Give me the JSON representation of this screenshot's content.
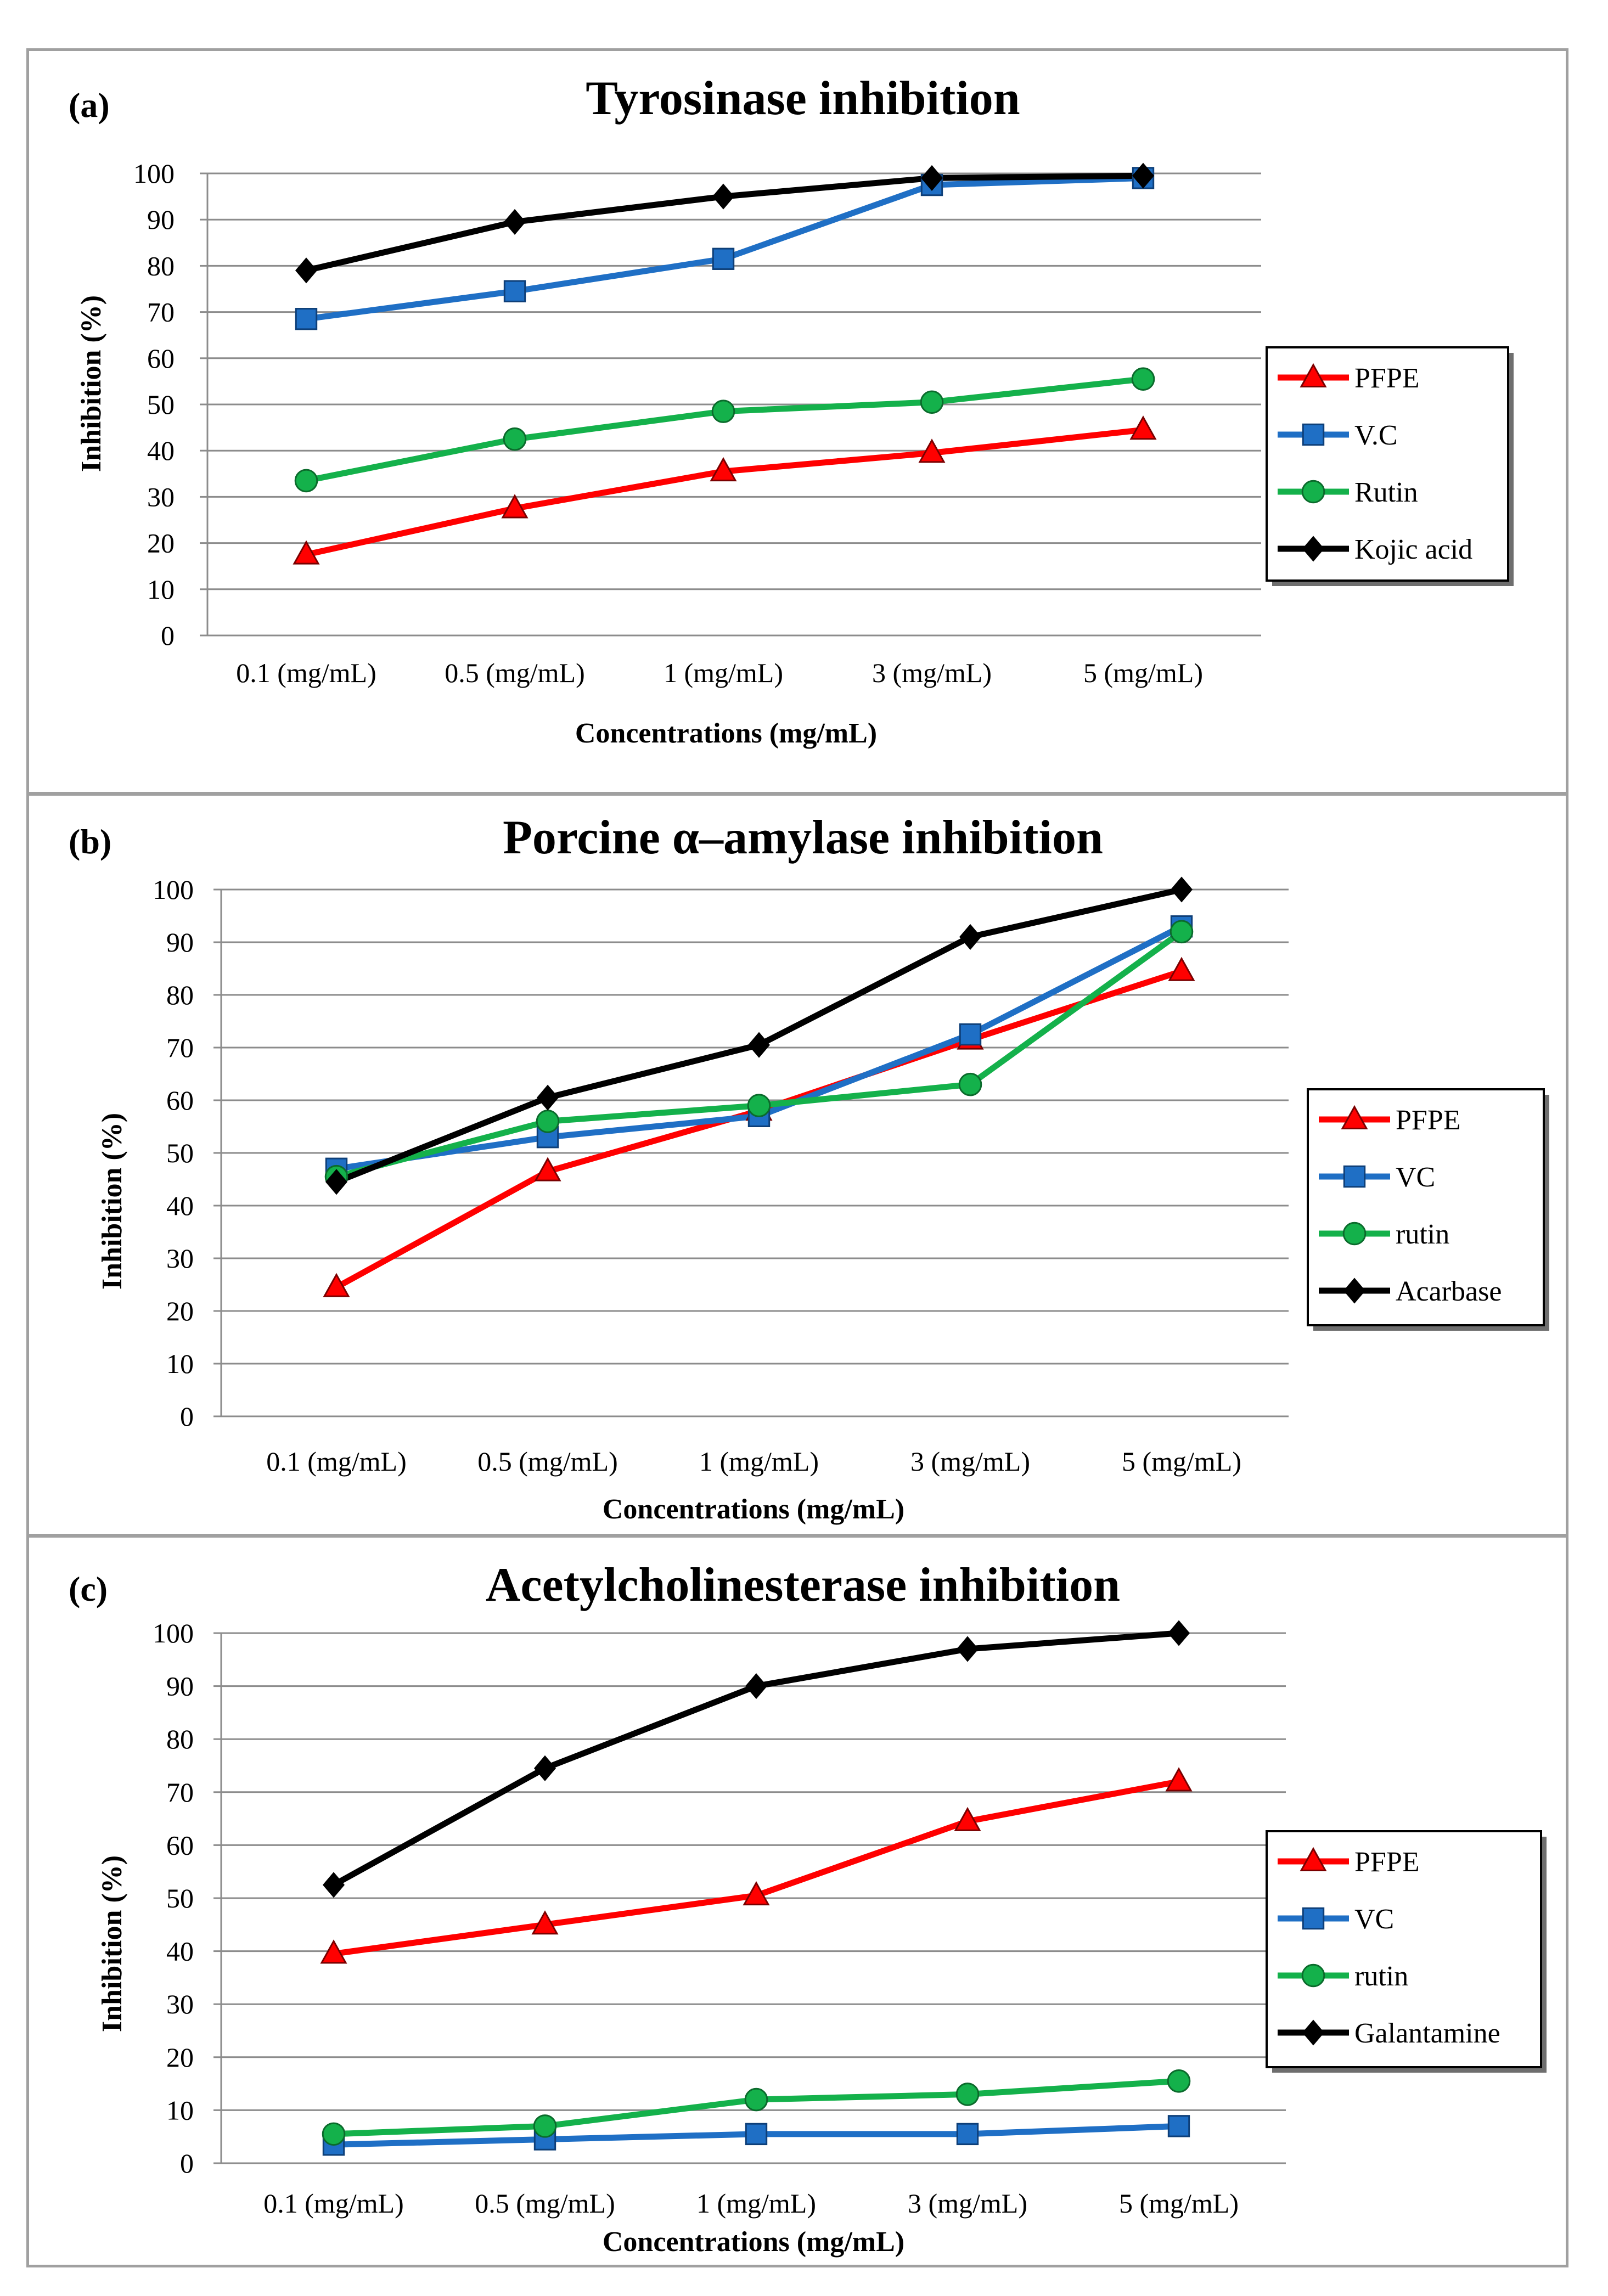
{
  "chart_data": [
    {
      "type": "line",
      "panel_label": "(a)",
      "title": "Tyrosinase inhibition",
      "xlabel": "Concentrations (mg/mL)",
      "ylabel": "Inhibition (%)",
      "categories": [
        "0.1 (mg/mL)",
        "0.5 (mg/mL)",
        "1 (mg/mL)",
        "3 (mg/mL)",
        "5 (mg/mL)"
      ],
      "ylim": [
        0,
        100
      ],
      "yticks": [
        0,
        10,
        20,
        30,
        40,
        50,
        60,
        70,
        80,
        90,
        100
      ],
      "grid": true,
      "legend_position": "right",
      "series": [
        {
          "name": "PFPE",
          "color": "#ff0000",
          "marker": "triangle",
          "values": [
            17.5,
            27.5,
            35.5,
            39.5,
            44.5
          ]
        },
        {
          "name": "V.C",
          "color": "#1f6fc5",
          "marker": "square",
          "values": [
            68.5,
            74.5,
            81.5,
            97.5,
            99.0
          ]
        },
        {
          "name": "Rutin",
          "color": "#14b14b",
          "marker": "circle",
          "values": [
            33.5,
            42.5,
            48.5,
            50.5,
            55.5
          ]
        },
        {
          "name": "Kojic acid",
          "color": "#000000",
          "marker": "diamond",
          "values": [
            79.0,
            89.5,
            95.0,
            99.0,
            99.5
          ]
        }
      ]
    },
    {
      "type": "line",
      "panel_label": "(b)",
      "title": "Porcine α–amylase inhibition",
      "xlabel": "Concentrations (mg/mL)",
      "ylabel": "Inhibition (%)",
      "categories": [
        "0.1 (mg/mL)",
        "0.5 (mg/mL)",
        "1 (mg/mL)",
        "3 (mg/mL)",
        "5 (mg/mL)"
      ],
      "ylim": [
        0,
        100
      ],
      "yticks": [
        0,
        10,
        20,
        30,
        40,
        50,
        60,
        70,
        80,
        90,
        100
      ],
      "grid": true,
      "legend_position": "right",
      "series": [
        {
          "name": "PFPE",
          "color": "#ff0000",
          "marker": "triangle",
          "values": [
            24.5,
            46.5,
            58.0,
            71.5,
            84.5
          ]
        },
        {
          "name": "VC",
          "color": "#1f6fc5",
          "marker": "square",
          "values": [
            47.0,
            53.0,
            57.0,
            72.5,
            93.0
          ]
        },
        {
          "name": "rutin",
          "color": "#14b14b",
          "marker": "circle",
          "values": [
            45.5,
            56.0,
            59.0,
            63.0,
            92.0
          ]
        },
        {
          "name": "Acarbase",
          "color": "#000000",
          "marker": "diamond",
          "values": [
            44.5,
            60.5,
            70.5,
            91.0,
            100.0
          ]
        }
      ]
    },
    {
      "type": "line",
      "panel_label": "(c)",
      "title": "Acetylcholinesterase inhibition",
      "xlabel": "Concentrations (mg/mL)",
      "ylabel": "Inhibition (%)",
      "categories": [
        "0.1 (mg/mL)",
        "0.5 (mg/mL)",
        "1 (mg/mL)",
        "3 (mg/mL)",
        "5 (mg/mL)"
      ],
      "ylim": [
        0,
        100
      ],
      "yticks": [
        0,
        10,
        20,
        30,
        40,
        50,
        60,
        70,
        80,
        90,
        100
      ],
      "grid": true,
      "legend_position": "right",
      "series": [
        {
          "name": "PFPE",
          "color": "#ff0000",
          "marker": "triangle",
          "values": [
            39.5,
            45.0,
            50.5,
            64.5,
            72.0
          ]
        },
        {
          "name": "VC",
          "color": "#1f6fc5",
          "marker": "square",
          "values": [
            3.5,
            4.5,
            5.5,
            5.5,
            7.0
          ]
        },
        {
          "name": "rutin",
          "color": "#14b14b",
          "marker": "circle",
          "values": [
            5.5,
            7.0,
            12.0,
            13.0,
            15.5
          ]
        },
        {
          "name": "Galantamine",
          "color": "#000000",
          "marker": "diamond",
          "values": [
            52.5,
            74.5,
            90.0,
            97.0,
            100.0
          ]
        }
      ]
    }
  ]
}
